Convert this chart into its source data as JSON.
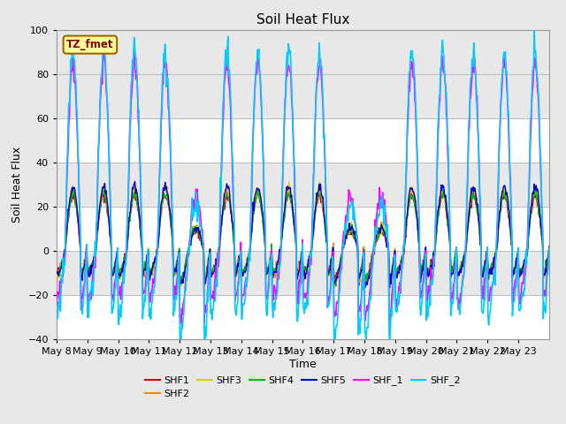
{
  "title": "Soil Heat Flux",
  "ylabel": "Soil Heat Flux",
  "xlabel": "Time",
  "ylim": [
    -40,
    100
  ],
  "series_order": [
    "SHF1",
    "SHF2",
    "SHF3",
    "SHF4",
    "SHF5",
    "SHF_1",
    "SHF_2"
  ],
  "series": {
    "SHF1": {
      "color": "#cc0000",
      "lw": 1.0
    },
    "SHF2": {
      "color": "#ff8800",
      "lw": 1.0
    },
    "SHF3": {
      "color": "#ddcc00",
      "lw": 1.0
    },
    "SHF4": {
      "color": "#00bb00",
      "lw": 1.0
    },
    "SHF5": {
      "color": "#0000cc",
      "lw": 1.0
    },
    "SHF_1": {
      "color": "#ff00ff",
      "lw": 1.2
    },
    "SHF_2": {
      "color": "#00ccff",
      "lw": 1.2
    }
  },
  "annotation_text": "TZ_fmet",
  "annotation_box_facecolor": "#ffff99",
  "annotation_box_edgecolor": "#996600",
  "x_tick_labels": [
    "May 8",
    "May 9",
    "May 10",
    "May 11",
    "May 12",
    "May 13",
    "May 14",
    "May 15",
    "May 16",
    "May 17",
    "May 18",
    "May 19",
    "May 20",
    "May 21",
    "May 22",
    "May 23"
  ],
  "yticks": [
    -40,
    -20,
    0,
    20,
    40,
    60,
    80,
    100
  ],
  "band_ranges": [
    [
      60,
      100
    ],
    [
      40,
      60
    ],
    [
      20,
      40
    ],
    [
      0,
      20
    ],
    [
      -20,
      0
    ],
    [
      -40,
      -20
    ]
  ],
  "band_colors": [
    "#e8e8e8",
    "#ffffff",
    "#e8e8e8",
    "#ffffff",
    "#e8e8e8",
    "#ffffff"
  ],
  "fig_facecolor": "#e8e8e8",
  "n_days": 16,
  "pts_per_day": 48
}
